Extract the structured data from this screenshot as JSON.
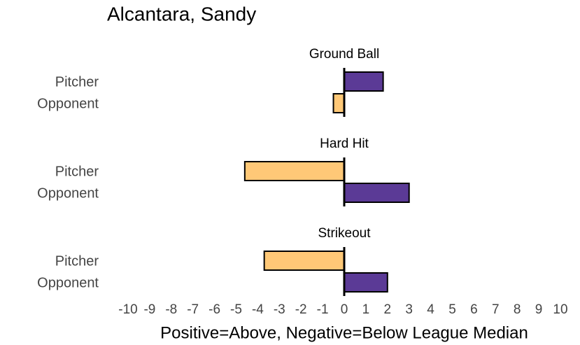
{
  "chart_data": {
    "type": "bar",
    "orientation": "horizontal",
    "title": "Alcantara, Sandy",
    "xlabel": "Positive=Above, Negative=Below League Median",
    "panels": [
      {
        "title": "Ground Ball",
        "categories": [
          "Pitcher",
          "Opponent"
        ],
        "values": [
          1.8,
          -0.5
        ]
      },
      {
        "title": "Hard Hit",
        "categories": [
          "Pitcher",
          "Opponent"
        ],
        "values": [
          -4.6,
          3.0
        ]
      },
      {
        "title": "Strikeout",
        "categories": [
          "Pitcher",
          "Opponent"
        ],
        "values": [
          -3.7,
          2.0
        ]
      }
    ],
    "positive_color": "#5b3a96",
    "negative_color": "#ffc877",
    "xlim": [
      -10,
      10
    ],
    "xticks": [
      -10,
      -9,
      -8,
      -7,
      -6,
      -5,
      -4,
      -3,
      -2,
      -1,
      0,
      1,
      2,
      3,
      4,
      5,
      6,
      7,
      8,
      9,
      10
    ]
  }
}
